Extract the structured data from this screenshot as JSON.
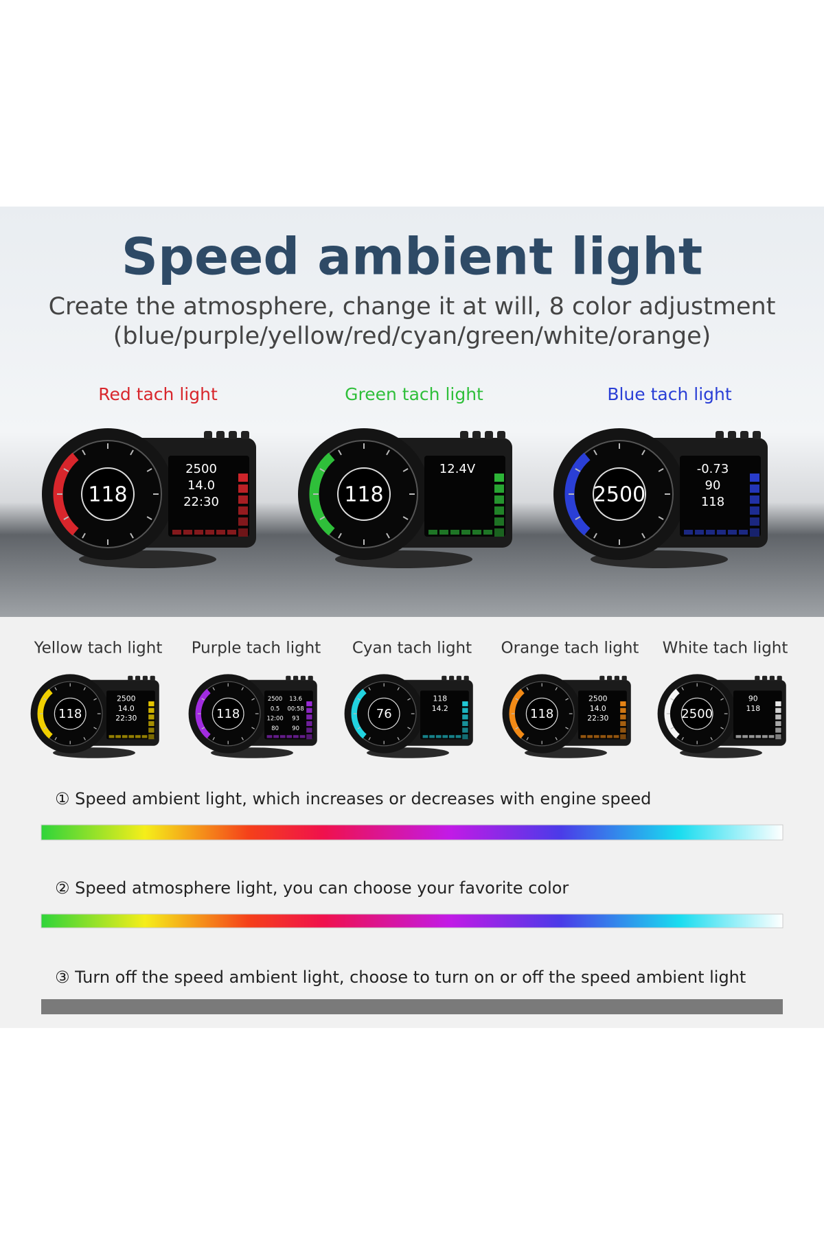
{
  "header": {
    "title": "Speed ambient light",
    "subtitle": [
      "Create the atmosphere, change it at will, 8 color adjustment",
      "(blue/purple/yellow/red/cyan/green/white/orange)"
    ]
  },
  "featured": [
    {
      "label": "Red tach light",
      "color": "#d8262c",
      "readings": [
        "118",
        "2500",
        "14.0",
        "22:30"
      ]
    },
    {
      "label": "Green tach light",
      "color": "#2fbf3a",
      "readings": [
        "118",
        "12.4V"
      ]
    },
    {
      "label": "Blue tach light",
      "color": "#2a3fd6",
      "readings": [
        "2500",
        "-0.73",
        "90",
        "118"
      ]
    }
  ],
  "variants": [
    {
      "label": "Yellow tach light",
      "color": "#f1d000",
      "readings": [
        "118",
        "2500",
        "14.0",
        "22:30"
      ]
    },
    {
      "label": "Purple tach light",
      "color": "#a12ce0",
      "readings": [
        "118",
        "2500",
        "0.5",
        "12:00",
        "80",
        "13.6",
        "00:58",
        "93",
        "90"
      ]
    },
    {
      "label": "Cyan tach light",
      "color": "#22d3e0",
      "readings": [
        "76",
        "118",
        "14.2"
      ]
    },
    {
      "label": "Orange tach light",
      "color": "#f28a16",
      "readings": [
        "118",
        "2500",
        "14.0",
        "22:30"
      ]
    },
    {
      "label": "White tach light",
      "color": "#f4f4f4",
      "readings": [
        "2500",
        "90",
        "118"
      ]
    }
  ],
  "options": [
    "① Speed ambient light, which increases or decreases with engine speed",
    "② Speed atmosphere light, you can choose your favorite color",
    "③ Turn off the speed ambient light, choose to turn on or off the speed ambient light"
  ]
}
